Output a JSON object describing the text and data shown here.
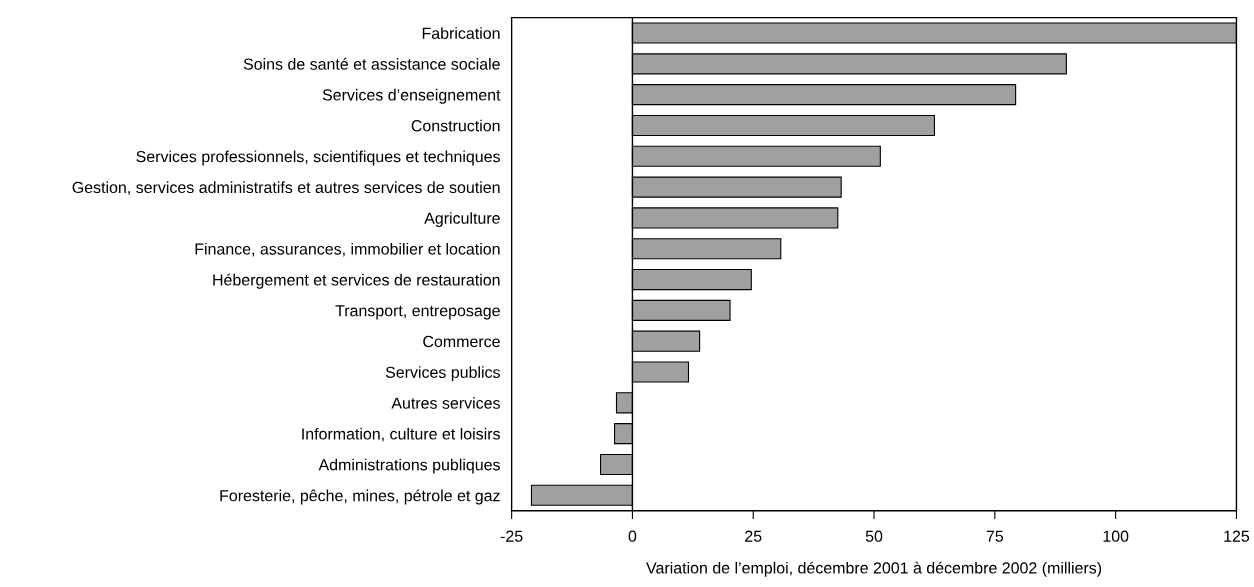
{
  "chart_data": {
    "type": "bar",
    "orientation": "horizontal",
    "xlabel": "Variation de l’emploi, décembre 2001 à décembre 2002 (milliers)",
    "categories": [
      "Fabrication",
      "Soins de santé et assistance sociale",
      "Services d’enseignement",
      "Construction",
      "Services professionnels, scientifiques et techniques",
      "Gestion, services administratifs et autres services de soutien",
      "Agriculture",
      "Finance, assurances, immobilier et location",
      "Hébergement et services de restauration",
      "Transport, entreposage",
      "Commerce",
      "Services publics",
      "Autres services",
      "Information, culture et loisirs",
      "Administrations publiques",
      "Foresterie, pêche, mines, pétrole et gaz"
    ],
    "values": [
      125,
      89.8,
      79.3,
      62.5,
      51.3,
      43.2,
      42.5,
      30.7,
      24.6,
      20.2,
      13.9,
      11.6,
      -3.3,
      -3.7,
      -6.6,
      -20.9
    ],
    "color": "#a0a0a0",
    "xlim": [
      -25,
      125
    ],
    "xticks": [
      -25,
      0,
      25,
      50,
      75,
      100,
      125
    ],
    "ref_lines": [
      {
        "axis": "x",
        "value": 0,
        "color": "#000000"
      }
    ]
  }
}
